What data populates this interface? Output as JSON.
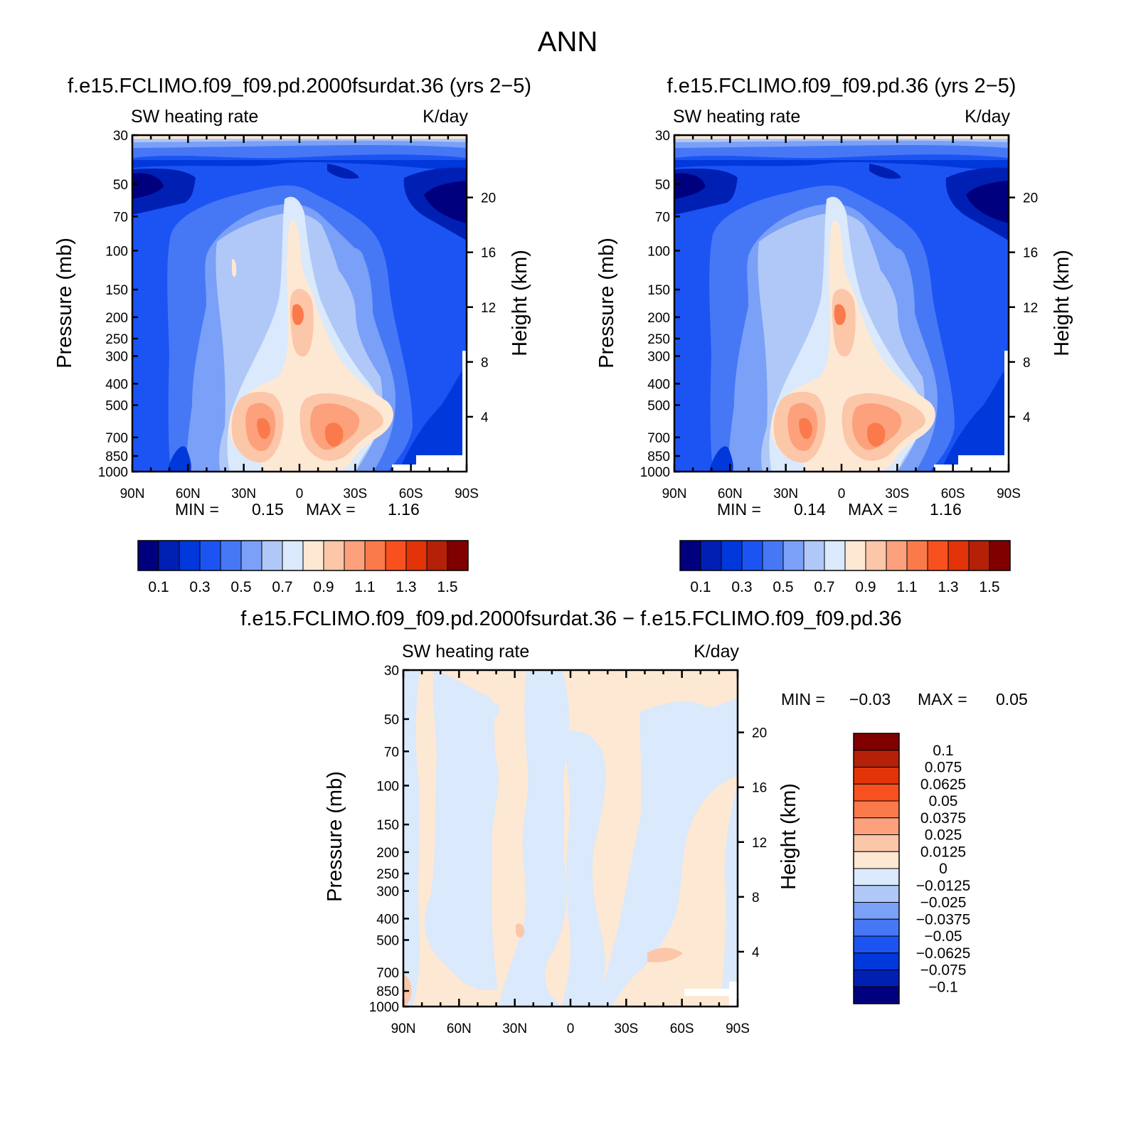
{
  "title": "ANN",
  "chart_data": [
    {
      "type": "heatmap",
      "title": "f.e15.FCLIMO.f09_f09.pd.2000fsurdat.36 (yrs 2−5)",
      "left_label": "SW heating rate",
      "right_label": "K/day",
      "ylabel": "Pressure (mb)",
      "ylabel_right": "Height (km)",
      "x_ticks": [
        "90N",
        "60N",
        "30N",
        "0",
        "30S",
        "60S",
        "90S"
      ],
      "xlim": [
        90,
        -90
      ],
      "y_ticks": [
        "30",
        "50",
        "70",
        "100",
        "150",
        "200",
        "250",
        "300",
        "400",
        "500",
        "700",
        "850",
        "1000"
      ],
      "y_tick_values": [
        30,
        50,
        70,
        100,
        150,
        200,
        250,
        300,
        400,
        500,
        700,
        850,
        1000
      ],
      "ylim": [
        1000,
        30
      ],
      "y_right_ticks": [
        "20",
        "16",
        "12",
        "8",
        "4"
      ],
      "y_right_values": [
        20,
        16,
        12,
        8,
        4
      ],
      "min_text": "MIN =",
      "min_value": "0.15",
      "max_text": "MAX =",
      "max_value": "1.16",
      "colorbar_labels": [
        "0.1",
        "0.3",
        "0.5",
        "0.7",
        "0.9",
        "1.1",
        "1.3",
        "1.5"
      ],
      "levels": [
        0.1,
        0.2,
        0.3,
        0.4,
        0.5,
        0.6,
        0.7,
        0.8,
        0.9,
        1.0,
        1.1,
        1.2,
        1.3,
        1.4,
        1.5
      ],
      "colors": [
        "#00007f",
        "#0020b4",
        "#0038dc",
        "#1c54f4",
        "#4678f6",
        "#7aa0f7",
        "#b0c8f8",
        "#dae9fb",
        "#fde8d4",
        "#fcc6a8",
        "#fca17c",
        "#fa7a4c",
        "#f8501e",
        "#e23408",
        "#b42008",
        "#800000"
      ]
    },
    {
      "type": "heatmap",
      "title": "f.e15.FCLIMO.f09_f09.pd.36 (yrs 2−5)",
      "left_label": "SW heating rate",
      "right_label": "K/day",
      "ylabel": "Pressure (mb)",
      "ylabel_right": "Height (km)",
      "x_ticks": [
        "90N",
        "60N",
        "30N",
        "0",
        "30S",
        "60S",
        "90S"
      ],
      "xlim": [
        90,
        -90
      ],
      "y_ticks": [
        "30",
        "50",
        "70",
        "100",
        "150",
        "200",
        "250",
        "300",
        "400",
        "500",
        "700",
        "850",
        "1000"
      ],
      "y_tick_values": [
        30,
        50,
        70,
        100,
        150,
        200,
        250,
        300,
        400,
        500,
        700,
        850,
        1000
      ],
      "ylim": [
        1000,
        30
      ],
      "y_right_ticks": [
        "20",
        "16",
        "12",
        "8",
        "4"
      ],
      "y_right_values": [
        20,
        16,
        12,
        8,
        4
      ],
      "min_text": "MIN =",
      "min_value": "0.14",
      "max_text": "MAX =",
      "max_value": "1.16",
      "colorbar_labels": [
        "0.1",
        "0.3",
        "0.5",
        "0.7",
        "0.9",
        "1.1",
        "1.3",
        "1.5"
      ],
      "levels": [
        0.1,
        0.2,
        0.3,
        0.4,
        0.5,
        0.6,
        0.7,
        0.8,
        0.9,
        1.0,
        1.1,
        1.2,
        1.3,
        1.4,
        1.5
      ],
      "colors": [
        "#00007f",
        "#0020b4",
        "#0038dc",
        "#1c54f4",
        "#4678f6",
        "#7aa0f7",
        "#b0c8f8",
        "#dae9fb",
        "#fde8d4",
        "#fcc6a8",
        "#fca17c",
        "#fa7a4c",
        "#f8501e",
        "#e23408",
        "#b42008",
        "#800000"
      ]
    },
    {
      "type": "heatmap",
      "title": "f.e15.FCLIMO.f09_f09.pd.2000fsurdat.36 − f.e15.FCLIMO.f09_f09.pd.36",
      "left_label": "SW heating rate",
      "right_label": "K/day",
      "ylabel": "Pressure (mb)",
      "ylabel_right": "Height (km)",
      "x_ticks": [
        "90N",
        "60N",
        "30N",
        "0",
        "30S",
        "60S",
        "90S"
      ],
      "xlim": [
        90,
        -90
      ],
      "y_ticks": [
        "30",
        "50",
        "70",
        "100",
        "150",
        "200",
        "250",
        "300",
        "400",
        "500",
        "700",
        "850",
        "1000"
      ],
      "y_tick_values": [
        30,
        50,
        70,
        100,
        150,
        200,
        250,
        300,
        400,
        500,
        700,
        850,
        1000
      ],
      "ylim": [
        1000,
        30
      ],
      "y_right_ticks": [
        "20",
        "16",
        "12",
        "8",
        "4"
      ],
      "y_right_values": [
        20,
        16,
        12,
        8,
        4
      ],
      "min_text": "MIN =",
      "min_value": "−0.03",
      "max_text": "MAX =",
      "max_value": "0.05",
      "colorbar_labels": [
        "0.1",
        "0.075",
        "0.0625",
        "0.05",
        "0.0375",
        "0.025",
        "0.0125",
        "0",
        "−0.0125",
        "−0.025",
        "−0.0375",
        "−0.05",
        "−0.0625",
        "−0.075",
        "−0.1"
      ],
      "levels": [
        0.1,
        0.075,
        0.0625,
        0.05,
        0.0375,
        0.025,
        0.0125,
        0,
        -0.0125,
        -0.025,
        -0.0375,
        -0.05,
        -0.0625,
        -0.075,
        -0.1
      ],
      "colors": [
        "#800000",
        "#b42008",
        "#e23408",
        "#f8501e",
        "#fa7a4c",
        "#fca17c",
        "#fcc6a8",
        "#fde8d4",
        "#dae9fb",
        "#b0c8f8",
        "#7aa0f7",
        "#4678f6",
        "#1c54f4",
        "#0038dc",
        "#0020b4",
        "#00007f"
      ]
    }
  ]
}
